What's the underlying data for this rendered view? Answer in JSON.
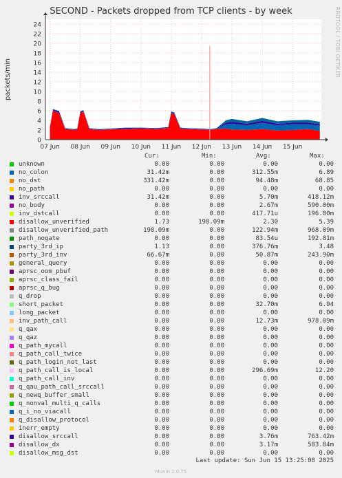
{
  "title": "SECOND - Packets dropped from TCP clients - by week",
  "side_label": "RRDTOOL / TOBI OETIKER",
  "footer": {
    "last_update": "Last update:  Sun Jun 15 13:25:08 2025",
    "munin": "Munin 2.0.75"
  },
  "legend_headers": {
    "cur": "Cur:",
    "min": "Min:",
    "avg": "Avg:",
    "max": "Max:"
  },
  "chart_data": {
    "type": "area",
    "title": "SECOND - Packets dropped from TCP clients - by week",
    "ylabel": "packets/min",
    "xlabel": "",
    "ylim": [
      0,
      25
    ],
    "yticks": [
      0,
      2,
      4,
      6,
      8,
      10,
      12,
      14,
      16,
      18,
      20,
      22,
      24
    ],
    "xtick_labels": [
      "07 Jun",
      "08 Jun",
      "09 Jun",
      "10 Jun",
      "11 Jun",
      "12 Jun",
      "13 Jun",
      "14 Jun",
      "15 Jun"
    ],
    "grid": true,
    "stack_series": [
      {
        "name": "disallow_unverified",
        "color": "#ff0000",
        "x": [
          0,
          0.1,
          0.3,
          0.5,
          0.8,
          0.9,
          1.0,
          1.1,
          1.3,
          1.6,
          2.0,
          2.5,
          3.0,
          3.5,
          3.9,
          4.0,
          4.1,
          4.3,
          4.5,
          5.0,
          5.3,
          5.5,
          5.8,
          6.0,
          6.5,
          7.0,
          7.5,
          8.0,
          8.5,
          8.9
        ],
        "values": [
          2.5,
          6.0,
          5.5,
          2.2,
          2.0,
          2.1,
          5.5,
          5.8,
          2.2,
          2.0,
          2.1,
          2.2,
          2.3,
          2.2,
          2.4,
          5.5,
          5.3,
          2.3,
          2.2,
          2.1,
          2.0,
          2.2,
          2.3,
          2.1,
          2.0,
          2.2,
          1.9,
          2.0,
          2.2,
          1.8
        ]
      },
      {
        "name": "no_colon",
        "color": "#0066b3",
        "x": [
          0,
          0.1,
          0.3,
          0.5,
          0.8,
          0.9,
          1.0,
          1.1,
          1.3,
          1.6,
          2.0,
          2.5,
          3.0,
          3.5,
          3.9,
          4.0,
          4.1,
          4.3,
          4.5,
          5.0,
          5.3,
          5.5,
          5.8,
          6.0,
          6.5,
          7.0,
          7.5,
          8.0,
          8.5,
          8.9
        ],
        "values": [
          0.05,
          0.05,
          0.05,
          0.05,
          0.05,
          0.05,
          0.05,
          0.05,
          0.05,
          0.05,
          0.05,
          0.05,
          0.05,
          0.05,
          0.05,
          0.05,
          0.05,
          0.05,
          0.05,
          0.05,
          0.05,
          0.05,
          0.9,
          1.2,
          1.0,
          1.3,
          1.1,
          1.2,
          1.0,
          1.1
        ]
      },
      {
        "name": "inv_srccall",
        "color": "#330099",
        "x": [
          0,
          0.1,
          0.3,
          0.5,
          0.8,
          0.9,
          1.0,
          1.1,
          1.3,
          1.6,
          2.0,
          2.5,
          3.0,
          3.5,
          3.9,
          4.0,
          4.1,
          4.3,
          4.5,
          5.0,
          5.3,
          5.5,
          5.8,
          6.0,
          6.5,
          7.0,
          7.5,
          8.0,
          8.5,
          8.9
        ],
        "values": [
          0.1,
          0.2,
          0.3,
          0.1,
          0.1,
          0.1,
          0.2,
          0.2,
          0.1,
          0.1,
          0.1,
          0.2,
          0.1,
          0.1,
          0.1,
          0.2,
          0.2,
          0.1,
          0.1,
          0.1,
          0.1,
          0.1,
          0.3,
          0.4,
          0.3,
          0.4,
          0.3,
          0.3,
          0.3,
          0.3
        ]
      },
      {
        "name": "party_3rd_ip",
        "color": "#006699",
        "x": [
          0,
          0.1,
          0.3,
          0.5,
          0.8,
          0.9,
          1.0,
          1.1,
          1.3,
          1.6,
          2.0,
          2.5,
          3.0,
          3.5,
          3.9,
          4.0,
          4.1,
          4.3,
          4.5,
          5.0,
          5.3,
          5.5,
          5.8,
          6.0,
          6.5,
          7.0,
          7.5,
          8.0,
          8.5,
          8.9
        ],
        "values": [
          0.05,
          0.1,
          0.1,
          0.05,
          0.05,
          0.05,
          0.1,
          0.1,
          0.05,
          0.05,
          0.05,
          0.05,
          0.05,
          0.05,
          0.05,
          0.1,
          0.1,
          0.05,
          0.05,
          0.05,
          0.05,
          0.05,
          0.5,
          0.6,
          0.5,
          0.6,
          0.5,
          0.5,
          0.6,
          0.5
        ]
      }
    ],
    "spikes": [
      {
        "x": 5.27,
        "value": 19.5,
        "color": "#ff9999"
      }
    ],
    "legend": [
      {
        "name": "unknown",
        "color": "#00cc00",
        "cur": "0.00",
        "min": "0.00",
        "avg": "0.00",
        "max": "0.00"
      },
      {
        "name": "no_colon",
        "color": "#0066b3",
        "cur": "31.42m",
        "min": "0.00",
        "avg": "312.55m",
        "max": "6.89"
      },
      {
        "name": "no_dst",
        "color": "#ff8000",
        "cur": "331.42m",
        "min": "0.00",
        "avg": "94.48m",
        "max": "68.85"
      },
      {
        "name": "no_path",
        "color": "#ffcc00",
        "cur": "0.00",
        "min": "0.00",
        "avg": "0.00",
        "max": "0.00"
      },
      {
        "name": "inv_srccall",
        "color": "#330099",
        "cur": "31.42m",
        "min": "0.00",
        "avg": "5.70m",
        "max": "418.12m"
      },
      {
        "name": "no_body",
        "color": "#990099",
        "cur": "0.00",
        "min": "0.00",
        "avg": "2.67m",
        "max": "590.00m"
      },
      {
        "name": "inv_dstcall",
        "color": "#ccff00",
        "cur": "0.00",
        "min": "0.00",
        "avg": "417.71u",
        "max": "196.00m"
      },
      {
        "name": "disallow_unverified",
        "color": "#ff0000",
        "cur": "1.73",
        "min": "198.09m",
        "avg": "2.30",
        "max": "5.39"
      },
      {
        "name": "disallow_unverified_path",
        "color": "#808080",
        "cur": "198.09m",
        "min": "0.00",
        "avg": "122.94m",
        "max": "968.09m"
      },
      {
        "name": "path_nogate",
        "color": "#008f00",
        "cur": "0.00",
        "min": "0.00",
        "avg": "83.54u",
        "max": "192.81m"
      },
      {
        "name": "party_3rd_ip",
        "color": "#00487d",
        "cur": "1.13",
        "min": "0.00",
        "avg": "376.76m",
        "max": "3.48"
      },
      {
        "name": "party_3rd_inv",
        "color": "#b35a00",
        "cur": "66.67m",
        "min": "0.00",
        "avg": "50.87m",
        "max": "243.90m"
      },
      {
        "name": "general_query",
        "color": "#b38f00",
        "cur": "0.00",
        "min": "0.00",
        "avg": "0.00",
        "max": "0.00"
      },
      {
        "name": "aprsc_oom_pbuf",
        "color": "#6b006b",
        "cur": "0.00",
        "min": "0.00",
        "avg": "0.00",
        "max": "0.00"
      },
      {
        "name": "aprsc_class_fail",
        "color": "#8fb300",
        "cur": "0.00",
        "min": "0.00",
        "avg": "0.00",
        "max": "0.00"
      },
      {
        "name": "aprsc_q_bug",
        "color": "#b30000",
        "cur": "0.00",
        "min": "0.00",
        "avg": "0.00",
        "max": "0.00"
      },
      {
        "name": "q_drop",
        "color": "#bebebe",
        "cur": "0.00",
        "min": "0.00",
        "avg": "0.00",
        "max": "0.00"
      },
      {
        "name": "short_packet",
        "color": "#80ff80",
        "cur": "0.00",
        "min": "0.00",
        "avg": "32.70m",
        "max": "6.94"
      },
      {
        "name": "long_packet",
        "color": "#80c9ff",
        "cur": "0.00",
        "min": "0.00",
        "avg": "0.00",
        "max": "0.00"
      },
      {
        "name": "inv_path_call",
        "color": "#ffc080",
        "cur": "0.00",
        "min": "0.00",
        "avg": "12.73m",
        "max": "978.09m"
      },
      {
        "name": "q_qax",
        "color": "#ffe680",
        "cur": "0.00",
        "min": "0.00",
        "avg": "0.00",
        "max": "0.00"
      },
      {
        "name": "q_qaz",
        "color": "#aa80ff",
        "cur": "0.00",
        "min": "0.00",
        "avg": "0.00",
        "max": "0.00"
      },
      {
        "name": "q_path_mycall",
        "color": "#ee00cc",
        "cur": "0.00",
        "min": "0.00",
        "avg": "0.00",
        "max": "0.00"
      },
      {
        "name": "q_path_call_twice",
        "color": "#ff8080",
        "cur": "0.00",
        "min": "0.00",
        "avg": "0.00",
        "max": "0.00"
      },
      {
        "name": "q_path_login_not_last",
        "color": "#666600",
        "cur": "0.00",
        "min": "0.00",
        "avg": "0.00",
        "max": "0.00"
      },
      {
        "name": "q_path_call_is_local",
        "color": "#ffbfff",
        "cur": "0.00",
        "min": "0.00",
        "avg": "296.69m",
        "max": "12.20"
      },
      {
        "name": "q_path_call_inv",
        "color": "#00ffcc",
        "cur": "0.00",
        "min": "0.00",
        "avg": "0.00",
        "max": "0.00"
      },
      {
        "name": "q_qau_path_call_srccall",
        "color": "#cc6699",
        "cur": "0.00",
        "min": "0.00",
        "avg": "0.00",
        "max": "0.00"
      },
      {
        "name": "q_newq_buffer_small",
        "color": "#999900",
        "cur": "0.00",
        "min": "0.00",
        "avg": "0.00",
        "max": "0.00"
      },
      {
        "name": "q_nonval_multi_q_calls",
        "color": "#00cc00",
        "cur": "0.00",
        "min": "0.00",
        "avg": "0.00",
        "max": "0.00"
      },
      {
        "name": "q_i_no_viacall",
        "color": "#0066b3",
        "cur": "0.00",
        "min": "0.00",
        "avg": "0.00",
        "max": "0.00"
      },
      {
        "name": "q_disallow_protocol",
        "color": "#ff8000",
        "cur": "0.00",
        "min": "0.00",
        "avg": "0.00",
        "max": "0.00"
      },
      {
        "name": "inerr_empty",
        "color": "#ffcc00",
        "cur": "0.00",
        "min": "0.00",
        "avg": "0.00",
        "max": "0.00"
      },
      {
        "name": "disallow_srccall",
        "color": "#330099",
        "cur": "0.00",
        "min": "0.00",
        "avg": "3.76m",
        "max": "763.42m"
      },
      {
        "name": "disallow_dx",
        "color": "#990099",
        "cur": "0.00",
        "min": "0.00",
        "avg": "3.17m",
        "max": "583.84m"
      },
      {
        "name": "disallow_msg_dst",
        "color": "#ccff00",
        "cur": "0.00",
        "min": "0.00",
        "avg": "0.00",
        "max": "0.00"
      }
    ]
  }
}
